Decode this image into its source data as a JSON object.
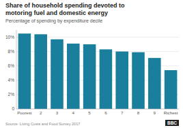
{
  "chart_data": {
    "type": "bar",
    "title": "Share of household spending devoted to\nmotoring fuel and domestic energy",
    "subtitle": "Percentage of spending by expenditure decile",
    "source": "Source: Living Costs and Food Survey 2017",
    "annotations": [
      "BBC"
    ],
    "categories": [
      "Poorest",
      "2",
      "3",
      "4",
      "5",
      "6",
      "7",
      "8",
      "9",
      "Richest"
    ],
    "values": [
      10.5,
      10.4,
      9.7,
      9.1,
      9.0,
      8.3,
      8.0,
      7.9,
      7.1,
      5.4
    ],
    "color": "#1a7f9c",
    "ylim": [
      0,
      11
    ],
    "yticks": [
      0,
      {
        "value": 2,
        "label": "2%"
      },
      {
        "value": 4,
        "label": "4%"
      },
      {
        "value": 6,
        "label": "6%"
      },
      {
        "value": 8,
        "label": "8%"
      },
      {
        "value": 10,
        "label": "10%"
      }
    ],
    "grid": true
  }
}
